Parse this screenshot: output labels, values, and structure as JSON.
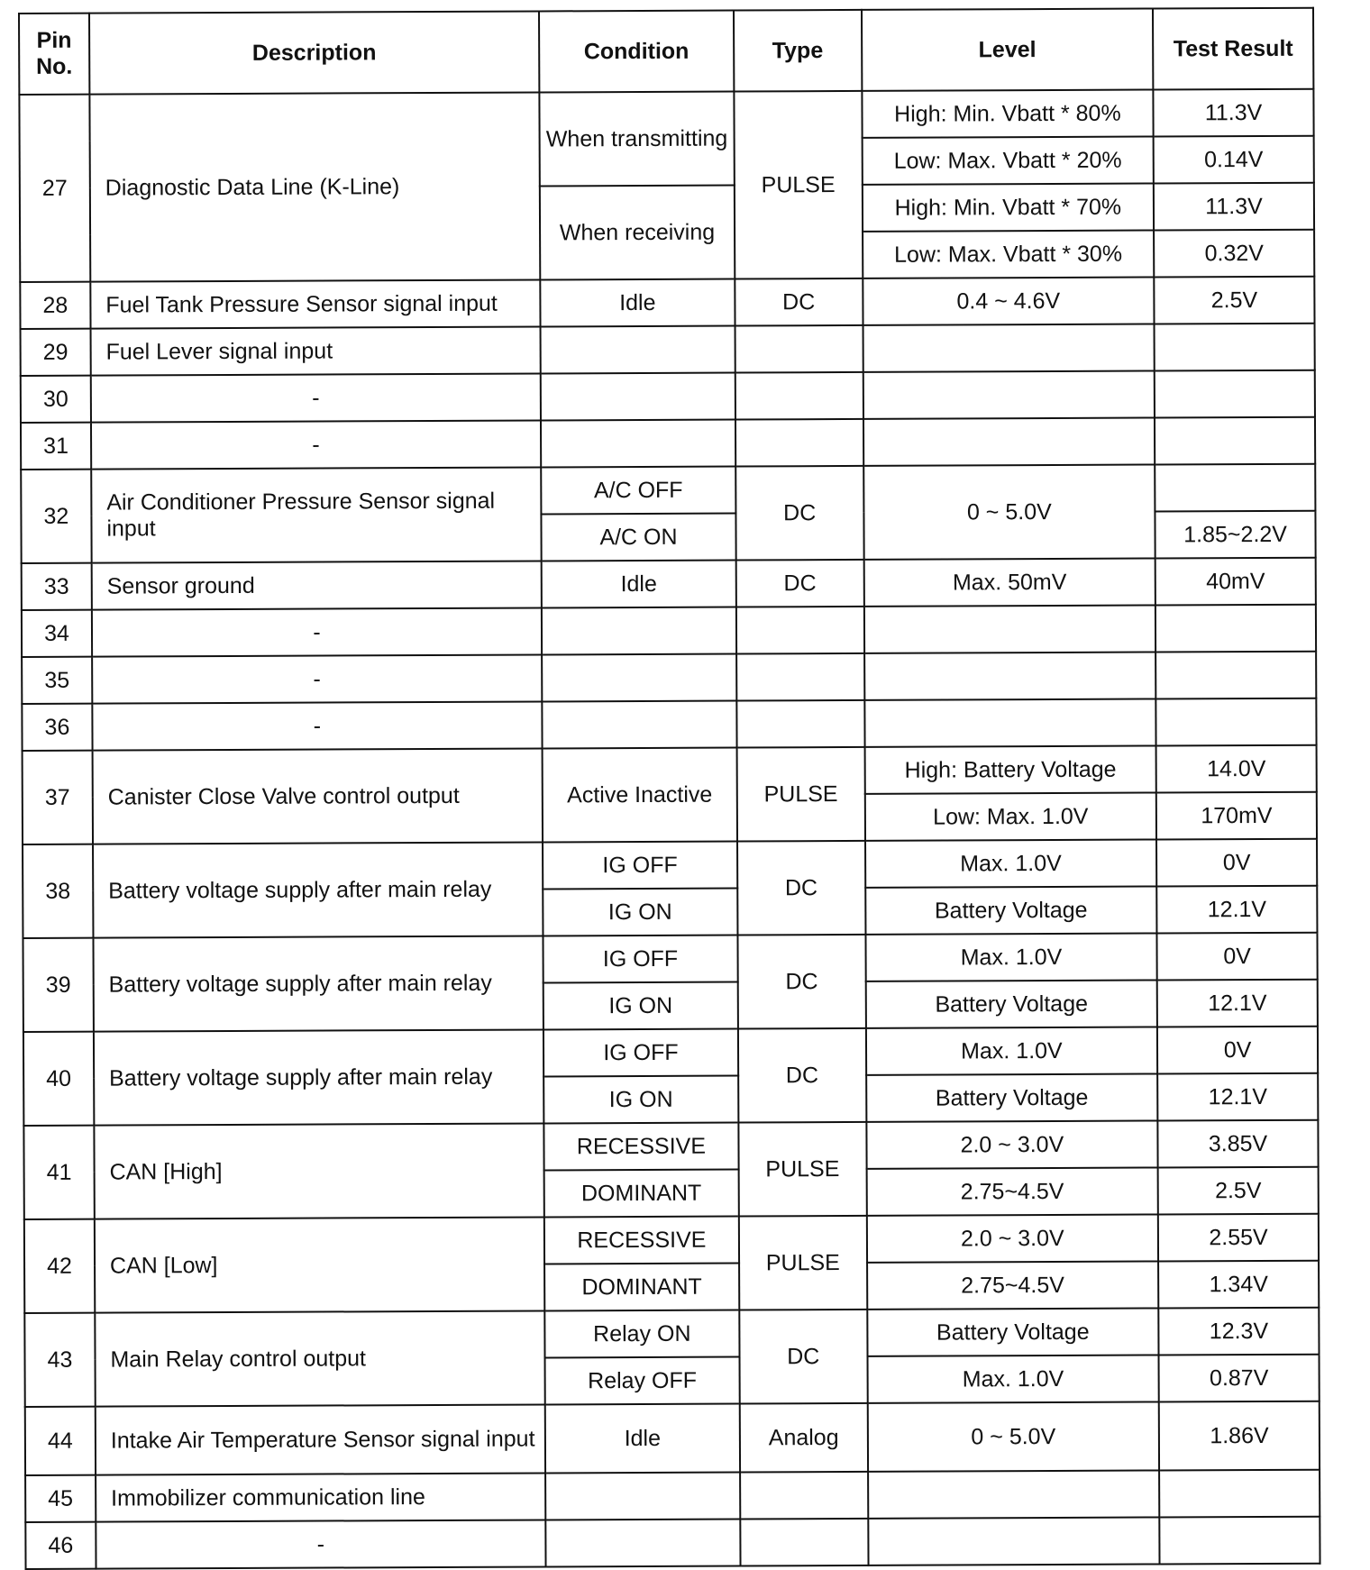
{
  "headers": [
    "Pin No.",
    "Description",
    "Condition",
    "Type",
    "Level",
    "Test Result"
  ],
  "pins": [
    {
      "pin": "27",
      "rows": 4,
      "description": "Diagnostic Data Line (K-Line)",
      "conditions": [
        {
          "text": "When transmitting",
          "span": 2
        },
        {
          "text": "When receiving",
          "span": 2
        }
      ],
      "type": "PULSE",
      "levels": [
        {
          "text": "High: Min. Vbatt * 80%",
          "span": 1
        },
        {
          "text": "Low: Max. Vbatt * 20%",
          "span": 1
        },
        {
          "text": "High: Min. Vbatt * 70%",
          "span": 1
        },
        {
          "text": "Low: Max. Vbatt * 30%",
          "span": 1
        }
      ],
      "results": [
        {
          "text": "11.3V",
          "span": 1
        },
        {
          "text": "0.14V",
          "span": 1
        },
        {
          "text": "11.3V",
          "span": 1
        },
        {
          "text": "0.32V",
          "span": 1
        }
      ]
    },
    {
      "pin": "28",
      "rows": 1,
      "description": "Fuel Tank Pressure Sensor signal input",
      "conditions": [
        {
          "text": "Idle",
          "span": 1
        }
      ],
      "type": "DC",
      "levels": [
        {
          "text": "0.4 ~ 4.6V",
          "span": 1
        }
      ],
      "results": [
        {
          "text": "2.5V",
          "span": 1
        }
      ]
    },
    {
      "pin": "29",
      "rows": 1,
      "description": "Fuel Lever signal input",
      "conditions": [
        {
          "text": "",
          "span": 1
        }
      ],
      "type": "",
      "levels": [
        {
          "text": "",
          "span": 1
        }
      ],
      "results": [
        {
          "text": "",
          "span": 1
        }
      ]
    },
    {
      "pin": "30",
      "rows": 1,
      "description": "-",
      "center": true,
      "conditions": [
        {
          "text": "",
          "span": 1
        }
      ],
      "type": "",
      "levels": [
        {
          "text": "",
          "span": 1
        }
      ],
      "results": [
        {
          "text": "",
          "span": 1
        }
      ]
    },
    {
      "pin": "31",
      "rows": 1,
      "description": "-",
      "center": true,
      "conditions": [
        {
          "text": "",
          "span": 1
        }
      ],
      "type": "",
      "levels": [
        {
          "text": "",
          "span": 1
        }
      ],
      "results": [
        {
          "text": "",
          "span": 1
        }
      ]
    },
    {
      "pin": "32",
      "rows": 2,
      "description": "Air Conditioner Pressure Sensor signal input",
      "conditions": [
        {
          "text": "A/C OFF",
          "span": 1
        },
        {
          "text": "A/C ON",
          "span": 1
        }
      ],
      "type": "DC",
      "levels": [
        {
          "text": "0 ~ 5.0V",
          "span": 2
        }
      ],
      "results": [
        {
          "text": "",
          "span": 1
        },
        {
          "text": "1.85~2.2V",
          "span": 1
        }
      ]
    },
    {
      "pin": "33",
      "rows": 1,
      "description": "Sensor ground",
      "conditions": [
        {
          "text": "Idle",
          "span": 1
        }
      ],
      "type": "DC",
      "levels": [
        {
          "text": "Max.  50mV",
          "span": 1
        }
      ],
      "results": [
        {
          "text": "40mV",
          "span": 1
        }
      ]
    },
    {
      "pin": "34",
      "rows": 1,
      "description": "-",
      "center": true,
      "conditions": [
        {
          "text": "",
          "span": 1
        }
      ],
      "type": "",
      "levels": [
        {
          "text": "",
          "span": 1
        }
      ],
      "results": [
        {
          "text": "",
          "span": 1
        }
      ]
    },
    {
      "pin": "35",
      "rows": 1,
      "description": "-",
      "center": true,
      "conditions": [
        {
          "text": "",
          "span": 1
        }
      ],
      "type": "",
      "levels": [
        {
          "text": "",
          "span": 1
        }
      ],
      "results": [
        {
          "text": "",
          "span": 1
        }
      ]
    },
    {
      "pin": "36",
      "rows": 1,
      "description": "-",
      "center": true,
      "conditions": [
        {
          "text": "",
          "span": 1
        }
      ],
      "type": "",
      "levels": [
        {
          "text": "",
          "span": 1
        }
      ],
      "results": [
        {
          "text": "",
          "span": 1
        }
      ]
    },
    {
      "pin": "37",
      "rows": 2,
      "description": "Canister Close Valve control output",
      "conditions": [
        {
          "text": "Active Inactive",
          "span": 2
        }
      ],
      "type": "PULSE",
      "levels": [
        {
          "text": "High: Battery Voltage",
          "span": 1
        },
        {
          "text": "Low:  Max.  1.0V",
          "span": 1
        }
      ],
      "results": [
        {
          "text": "14.0V",
          "span": 1
        },
        {
          "text": "170mV",
          "span": 1
        }
      ]
    },
    {
      "pin": "38",
      "rows": 2,
      "description": "Battery voltage supply after main relay",
      "conditions": [
        {
          "text": "IG OFF",
          "span": 1
        },
        {
          "text": "IG ON",
          "span": 1
        }
      ],
      "type": "DC",
      "levels": [
        {
          "text": "Max.  1.0V",
          "span": 1
        },
        {
          "text": "Battery Voltage",
          "span": 1
        }
      ],
      "results": [
        {
          "text": "0V",
          "span": 1
        },
        {
          "text": "12.1V",
          "span": 1
        }
      ]
    },
    {
      "pin": "39",
      "rows": 2,
      "description": "Battery voltage supply after main relay",
      "conditions": [
        {
          "text": "IG OFF",
          "span": 1
        },
        {
          "text": "IG ON",
          "span": 1
        }
      ],
      "type": "DC",
      "levels": [
        {
          "text": "Max.  1.0V",
          "span": 1
        },
        {
          "text": "Battery Voltage",
          "span": 1
        }
      ],
      "results": [
        {
          "text": "0V",
          "span": 1
        },
        {
          "text": "12.1V",
          "span": 1
        }
      ]
    },
    {
      "pin": "40",
      "rows": 2,
      "description": "Battery voltage supply after main relay",
      "conditions": [
        {
          "text": "IG OFF",
          "span": 1
        },
        {
          "text": "IG ON",
          "span": 1
        }
      ],
      "type": "DC",
      "levels": [
        {
          "text": "Max.  1.0V",
          "span": 1
        },
        {
          "text": "Battery Voltage",
          "span": 1
        }
      ],
      "results": [
        {
          "text": "0V",
          "span": 1
        },
        {
          "text": "12.1V",
          "span": 1
        }
      ]
    },
    {
      "pin": "41",
      "rows": 2,
      "description": "CAN [High]",
      "conditions": [
        {
          "text": "RECESSIVE",
          "span": 1
        },
        {
          "text": "DOMINANT",
          "span": 1
        }
      ],
      "type": "PULSE",
      "levels": [
        {
          "text": "2.0 ~ 3.0V",
          "span": 1
        },
        {
          "text": "2.75~4.5V",
          "span": 1
        }
      ],
      "results": [
        {
          "text": "3.85V",
          "span": 1
        },
        {
          "text": "2.5V",
          "span": 1
        }
      ]
    },
    {
      "pin": "42",
      "rows": 2,
      "description": "CAN [Low]",
      "conditions": [
        {
          "text": "RECESSIVE",
          "span": 1
        },
        {
          "text": "DOMINANT",
          "span": 1
        }
      ],
      "type": "PULSE",
      "levels": [
        {
          "text": "2.0 ~ 3.0V",
          "span": 1
        },
        {
          "text": "2.75~4.5V",
          "span": 1
        }
      ],
      "results": [
        {
          "text": "2.55V",
          "span": 1
        },
        {
          "text": "1.34V",
          "span": 1
        }
      ]
    },
    {
      "pin": "43",
      "rows": 2,
      "description": "Main Relay control output",
      "conditions": [
        {
          "text": "Relay ON",
          "span": 1
        },
        {
          "text": "Relay OFF",
          "span": 1
        }
      ],
      "type": "DC",
      "levels": [
        {
          "text": "Battery Voltage",
          "span": 1
        },
        {
          "text": "Max.  1.0V",
          "span": 1
        }
      ],
      "results": [
        {
          "text": "12.3V",
          "span": 1
        },
        {
          "text": "0.87V",
          "span": 1
        }
      ]
    },
    {
      "pin": "44",
      "rows": 1,
      "tall": true,
      "description": "Intake Air Temperature Sensor signal input",
      "conditions": [
        {
          "text": "Idle",
          "span": 1
        }
      ],
      "type": "Analog",
      "levels": [
        {
          "text": "0 ~ 5.0V",
          "span": 1
        }
      ],
      "results": [
        {
          "text": "1.86V",
          "span": 1
        }
      ]
    },
    {
      "pin": "45",
      "rows": 1,
      "description": "Immobilizer communication line",
      "conditions": [
        {
          "text": "",
          "span": 1
        }
      ],
      "type": "",
      "levels": [
        {
          "text": "",
          "span": 1
        }
      ],
      "results": [
        {
          "text": "",
          "span": 1
        }
      ]
    },
    {
      "pin": "46",
      "rows": 1,
      "description": "-",
      "center": true,
      "conditions": [
        {
          "text": "",
          "span": 1
        }
      ],
      "type": "",
      "levels": [
        {
          "text": "",
          "span": 1
        }
      ],
      "results": [
        {
          "text": "",
          "span": 1
        }
      ]
    }
  ]
}
